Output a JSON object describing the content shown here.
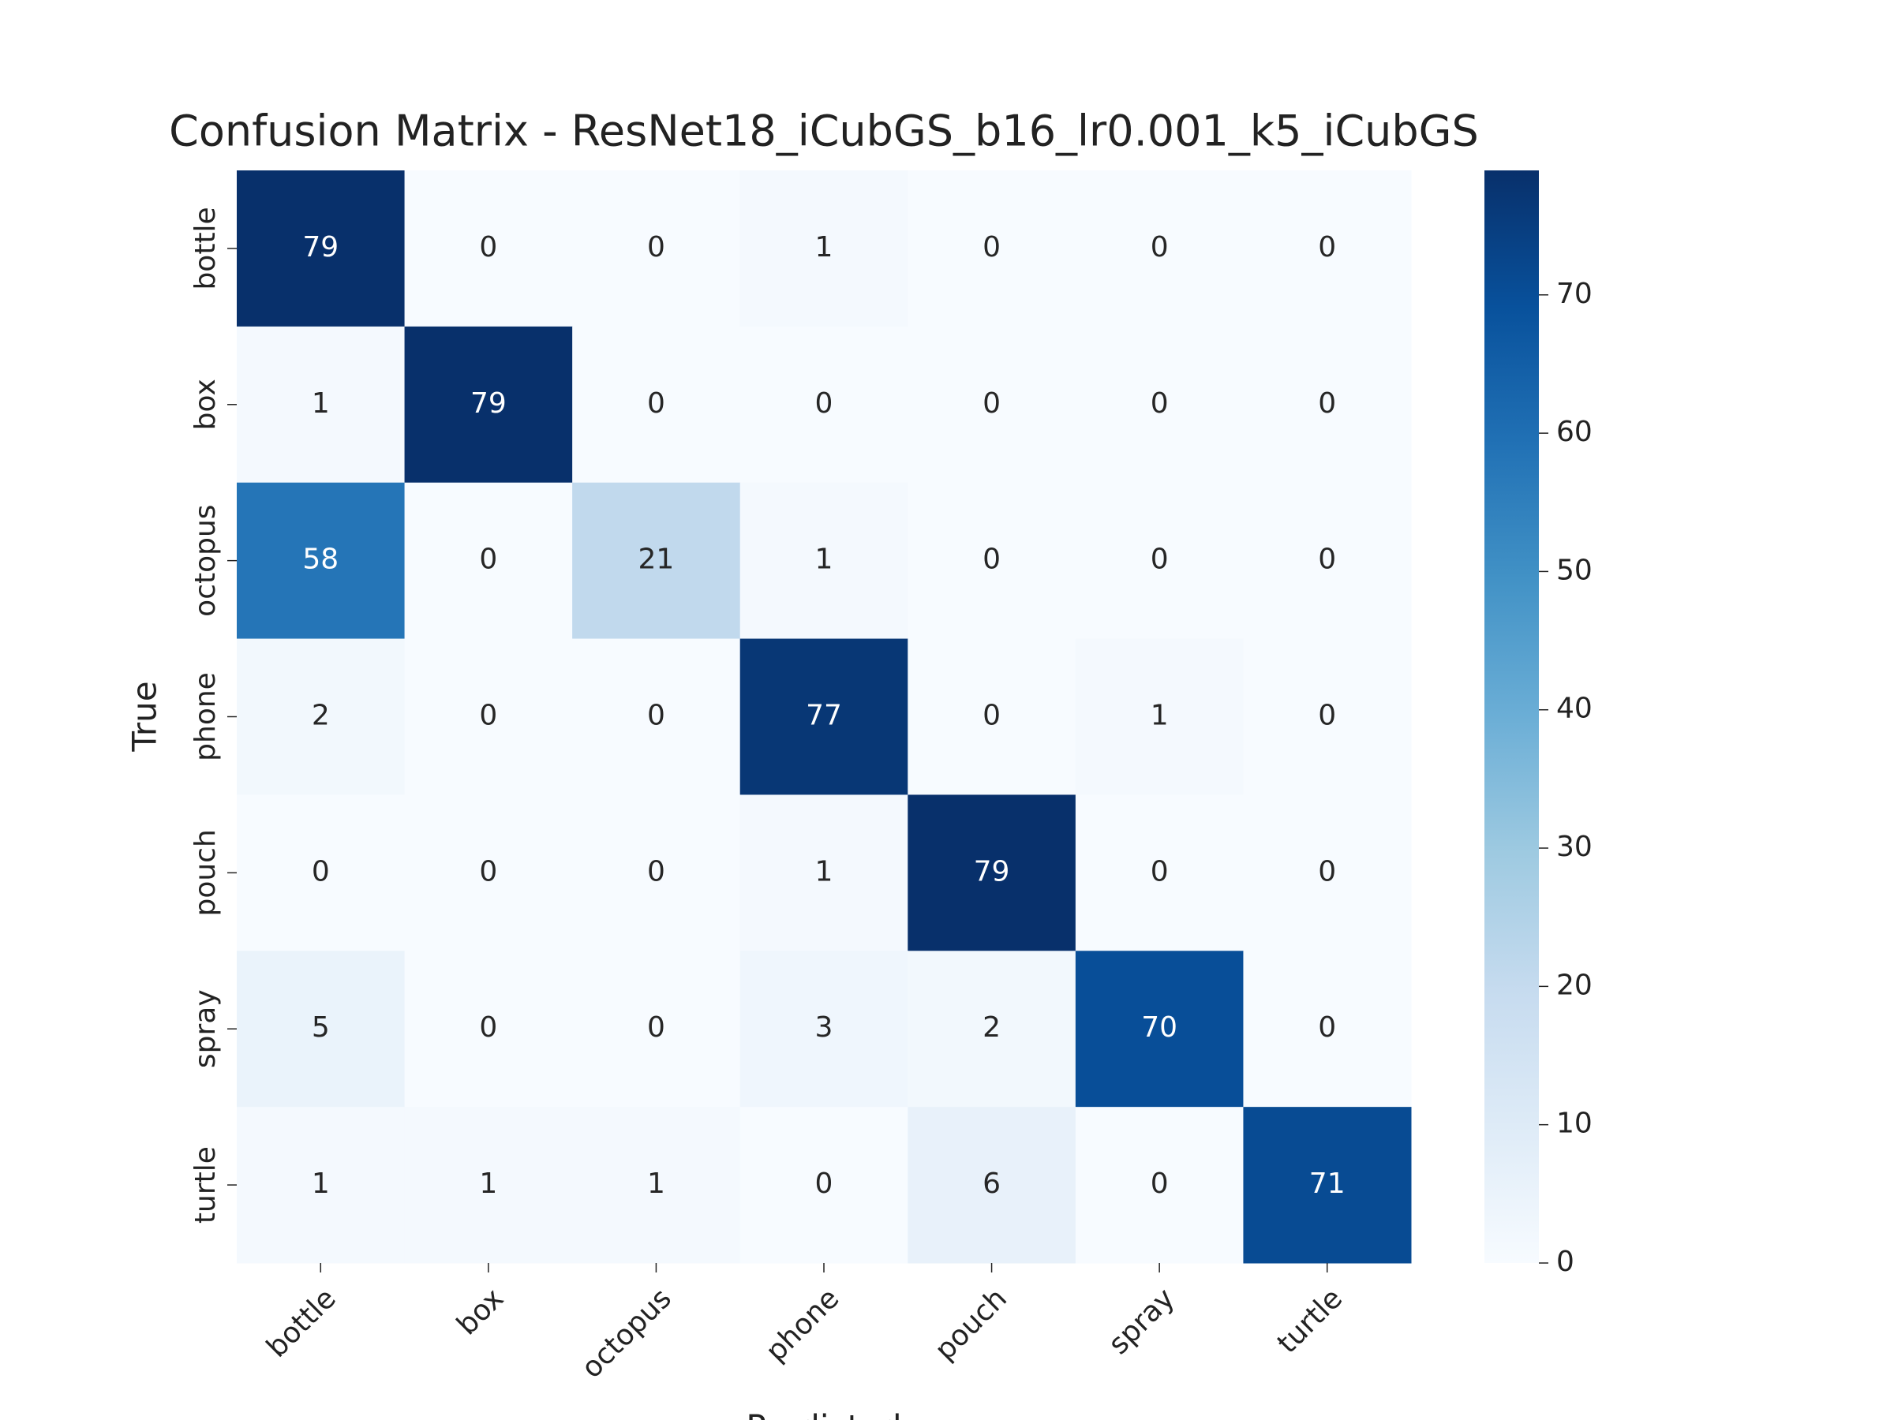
{
  "chart_data": {
    "type": "heatmap",
    "title": "Confusion Matrix - ResNet18_iCubGS_b16_lr0.001_k5_iCubGS",
    "xlabel": "Predicted",
    "ylabel": "True",
    "x_categories": [
      "bottle",
      "box",
      "octopus",
      "phone",
      "pouch",
      "spray",
      "turtle"
    ],
    "y_categories": [
      "bottle",
      "box",
      "octopus",
      "phone",
      "pouch",
      "spray",
      "turtle"
    ],
    "values": [
      [
        79,
        0,
        0,
        1,
        0,
        0,
        0
      ],
      [
        1,
        79,
        0,
        0,
        0,
        0,
        0
      ],
      [
        58,
        0,
        21,
        1,
        0,
        0,
        0
      ],
      [
        2,
        0,
        0,
        77,
        0,
        1,
        0
      ],
      [
        0,
        0,
        0,
        1,
        79,
        0,
        0
      ],
      [
        5,
        0,
        0,
        3,
        2,
        70,
        0
      ],
      [
        1,
        1,
        1,
        0,
        6,
        0,
        71
      ]
    ],
    "colormap": "Blues",
    "clim": [
      0,
      79
    ],
    "cticks": [
      0,
      10,
      20,
      30,
      40,
      50,
      60,
      70
    ]
  }
}
